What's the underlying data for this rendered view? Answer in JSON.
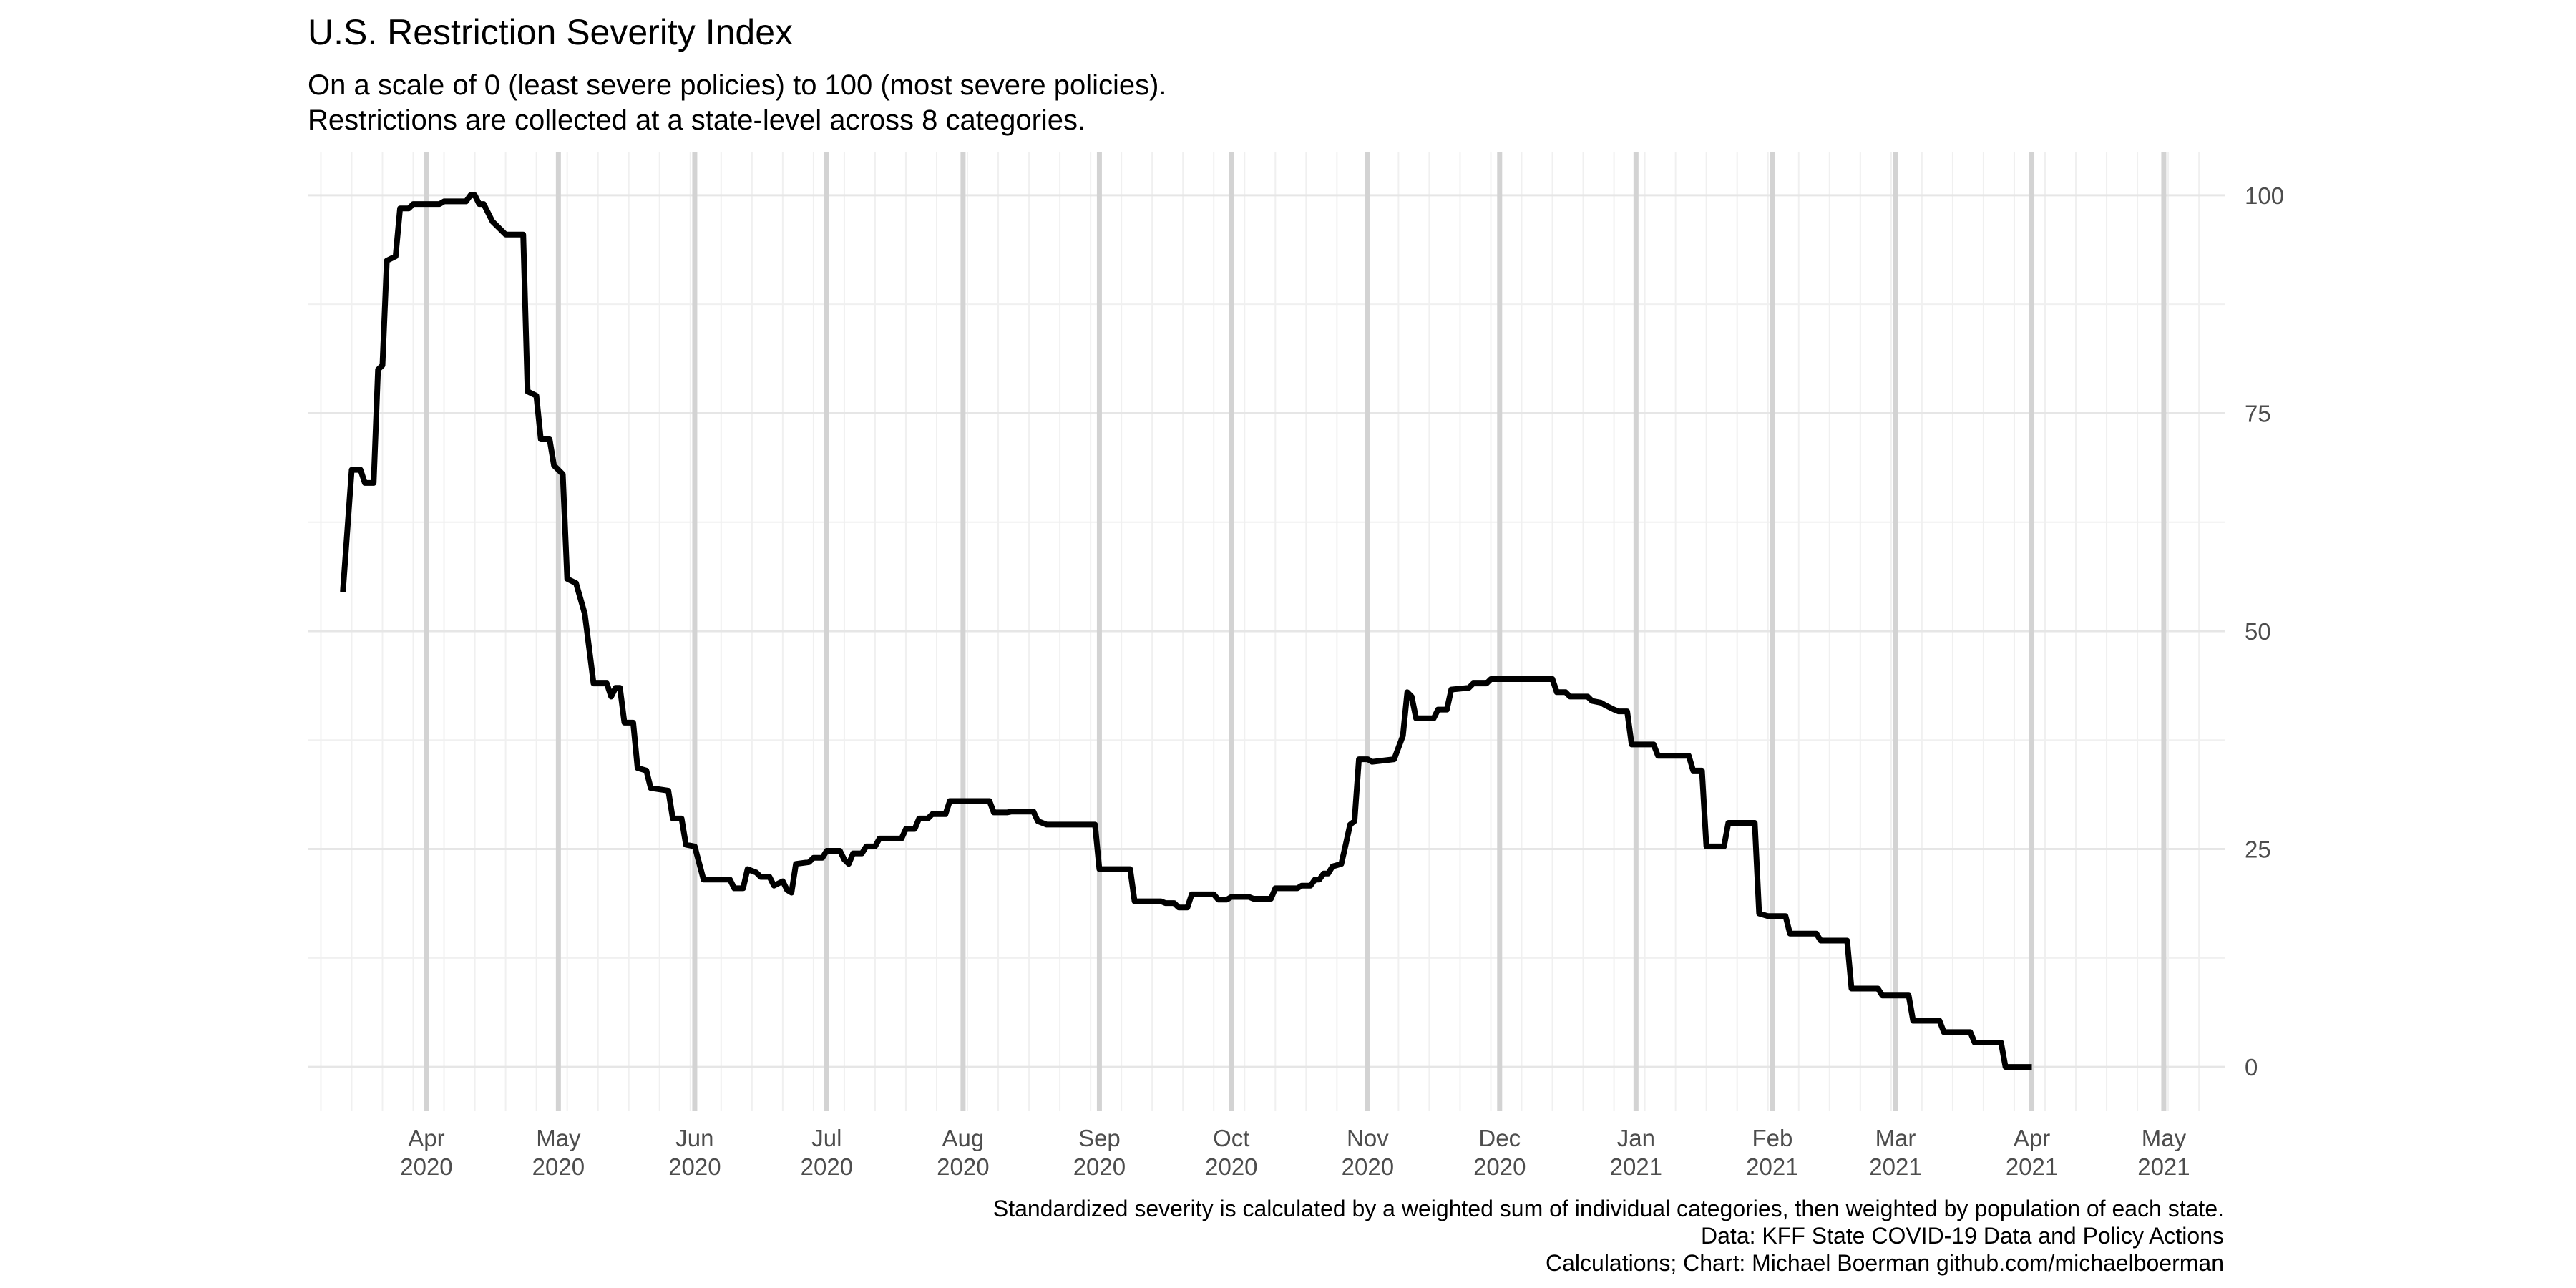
{
  "chart_data": {
    "type": "line",
    "title": "U.S. Restriction Severity Index",
    "subtitle": [
      "On a scale of 0 (least severe policies) to 100 (most severe policies).",
      "Restrictions are collected at a state-level across 8 categories."
    ],
    "caption": [
      "Standardized severity is calculated by a weighted sum of individual categories, then weighted by population of each state.",
      "Data: KFF State COVID-19 Data and Policy Actions",
      "Calculations; Chart: Michael Boerman github.com/michaelboerman"
    ],
    "xlabel": "",
    "ylabel": "",
    "xlim": [
      "2020-03-05",
      "2021-05-15"
    ],
    "ylim": [
      -5,
      105
    ],
    "y_ticks": [
      0,
      25,
      50,
      75,
      100
    ],
    "x_ticks": [
      {
        "date": "2020-04-01",
        "month": "Apr",
        "year": "2020"
      },
      {
        "date": "2020-05-01",
        "month": "May",
        "year": "2020"
      },
      {
        "date": "2020-06-01",
        "month": "Jun",
        "year": "2020"
      },
      {
        "date": "2020-07-01",
        "month": "Jul",
        "year": "2020"
      },
      {
        "date": "2020-08-01",
        "month": "Aug",
        "year": "2020"
      },
      {
        "date": "2020-09-01",
        "month": "Sep",
        "year": "2020"
      },
      {
        "date": "2020-10-01",
        "month": "Oct",
        "year": "2020"
      },
      {
        "date": "2020-11-01",
        "month": "Nov",
        "year": "2020"
      },
      {
        "date": "2020-12-01",
        "month": "Dec",
        "year": "2020"
      },
      {
        "date": "2021-01-01",
        "month": "Jan",
        "year": "2021"
      },
      {
        "date": "2021-02-01",
        "month": "Feb",
        "year": "2021"
      },
      {
        "date": "2021-03-01",
        "month": "Mar",
        "year": "2021"
      },
      {
        "date": "2021-04-01",
        "month": "Apr",
        "year": "2021"
      },
      {
        "date": "2021-05-01",
        "month": "May",
        "year": "2021"
      }
    ],
    "y_axis_position": "right",
    "grid": true,
    "legend": "none",
    "line_color": "#000000",
    "series": [
      {
        "points": [
          [
            "2020-03-13",
            54.5
          ],
          [
            "2020-03-15",
            68.5
          ],
          [
            "2020-03-17",
            68.5
          ],
          [
            "2020-03-18",
            67
          ],
          [
            "2020-03-20",
            67
          ],
          [
            "2020-03-21",
            80
          ],
          [
            "2020-03-22",
            80.5
          ],
          [
            "2020-03-23",
            92.5
          ],
          [
            "2020-03-25",
            93
          ],
          [
            "2020-03-26",
            98.5
          ],
          [
            "2020-03-28",
            98.5
          ],
          [
            "2020-03-29",
            99
          ],
          [
            "2020-04-04",
            99
          ],
          [
            "2020-04-05",
            99.3
          ],
          [
            "2020-04-10",
            99.3
          ],
          [
            "2020-04-11",
            100
          ],
          [
            "2020-04-12",
            100
          ],
          [
            "2020-04-13",
            99
          ],
          [
            "2020-04-14",
            99
          ],
          [
            "2020-04-16",
            97
          ],
          [
            "2020-04-17",
            96.5
          ],
          [
            "2020-04-19",
            95.5
          ],
          [
            "2020-04-23",
            95.5
          ],
          [
            "2020-04-24",
            77.5
          ],
          [
            "2020-04-26",
            77
          ],
          [
            "2020-04-27",
            72
          ],
          [
            "2020-04-29",
            72
          ],
          [
            "2020-04-30",
            69
          ],
          [
            "2020-05-02",
            68
          ],
          [
            "2020-05-03",
            56
          ],
          [
            "2020-05-05",
            55.5
          ],
          [
            "2020-05-07",
            52
          ],
          [
            "2020-05-08",
            48
          ],
          [
            "2020-05-09",
            44
          ],
          [
            "2020-05-12",
            44
          ],
          [
            "2020-05-13",
            42.5
          ],
          [
            "2020-05-14",
            43.5
          ],
          [
            "2020-05-15",
            43.5
          ],
          [
            "2020-05-16",
            39.5
          ],
          [
            "2020-05-18",
            39.5
          ],
          [
            "2020-05-19",
            34.3
          ],
          [
            "2020-05-21",
            34
          ],
          [
            "2020-05-22",
            32
          ],
          [
            "2020-05-26",
            31.7
          ],
          [
            "2020-05-27",
            28.5
          ],
          [
            "2020-05-29",
            28.5
          ],
          [
            "2020-05-30",
            25.5
          ],
          [
            "2020-06-01",
            25.3
          ],
          [
            "2020-06-03",
            21.5
          ],
          [
            "2020-06-09",
            21.5
          ],
          [
            "2020-06-10",
            20.5
          ],
          [
            "2020-06-12",
            20.5
          ],
          [
            "2020-06-13",
            22.7
          ],
          [
            "2020-06-15",
            22.3
          ],
          [
            "2020-06-16",
            21.8
          ],
          [
            "2020-06-18",
            21.8
          ],
          [
            "2020-06-19",
            20.8
          ],
          [
            "2020-06-21",
            21.3
          ],
          [
            "2020-06-22",
            20.3
          ],
          [
            "2020-06-23",
            20
          ],
          [
            "2020-06-24",
            23.3
          ],
          [
            "2020-06-27",
            23.5
          ],
          [
            "2020-06-28",
            24
          ],
          [
            "2020-06-30",
            24
          ],
          [
            "2020-07-01",
            24.8
          ],
          [
            "2020-07-04",
            24.8
          ],
          [
            "2020-07-05",
            23.8
          ],
          [
            "2020-07-06",
            23.3
          ],
          [
            "2020-07-07",
            24.5
          ],
          [
            "2020-07-09",
            24.5
          ],
          [
            "2020-07-10",
            25.3
          ],
          [
            "2020-07-12",
            25.3
          ],
          [
            "2020-07-13",
            26.2
          ],
          [
            "2020-07-18",
            26.2
          ],
          [
            "2020-07-19",
            27.3
          ],
          [
            "2020-07-21",
            27.3
          ],
          [
            "2020-07-22",
            28.5
          ],
          [
            "2020-07-24",
            28.5
          ],
          [
            "2020-07-25",
            29
          ],
          [
            "2020-07-28",
            29
          ],
          [
            "2020-07-29",
            30.5
          ],
          [
            "2020-08-07",
            30.5
          ],
          [
            "2020-08-08",
            29.2
          ],
          [
            "2020-08-11",
            29.2
          ],
          [
            "2020-08-12",
            29.3
          ],
          [
            "2020-08-17",
            29.3
          ],
          [
            "2020-08-18",
            28.2
          ],
          [
            "2020-08-20",
            27.8
          ],
          [
            "2020-08-21",
            27.8
          ],
          [
            "2020-08-31",
            27.8
          ],
          [
            "2020-09-01",
            22.7
          ],
          [
            "2020-09-08",
            22.7
          ],
          [
            "2020-09-09",
            19
          ],
          [
            "2020-09-15",
            19
          ],
          [
            "2020-09-16",
            18.8
          ],
          [
            "2020-09-18",
            18.8
          ],
          [
            "2020-09-19",
            18.3
          ],
          [
            "2020-09-21",
            18.3
          ],
          [
            "2020-09-22",
            19.8
          ],
          [
            "2020-09-27",
            19.8
          ],
          [
            "2020-09-28",
            19.2
          ],
          [
            "2020-09-30",
            19.2
          ],
          [
            "2020-10-01",
            19.5
          ],
          [
            "2020-10-05",
            19.5
          ],
          [
            "2020-10-06",
            19.3
          ],
          [
            "2020-10-10",
            19.3
          ],
          [
            "2020-10-11",
            20.5
          ],
          [
            "2020-10-16",
            20.5
          ],
          [
            "2020-10-17",
            20.8
          ],
          [
            "2020-10-19",
            20.8
          ],
          [
            "2020-10-20",
            21.5
          ],
          [
            "2020-10-21",
            21.5
          ],
          [
            "2020-10-22",
            22.2
          ],
          [
            "2020-10-23",
            22.2
          ],
          [
            "2020-10-24",
            23
          ],
          [
            "2020-10-26",
            23.3
          ],
          [
            "2020-10-27",
            25.5
          ],
          [
            "2020-10-28",
            27.8
          ],
          [
            "2020-10-29",
            28.2
          ],
          [
            "2020-10-30",
            35.3
          ],
          [
            "2020-11-01",
            35.3
          ],
          [
            "2020-11-02",
            35
          ],
          [
            "2020-11-07",
            35.3
          ],
          [
            "2020-11-09",
            38
          ],
          [
            "2020-11-10",
            43
          ],
          [
            "2020-11-11",
            42.5
          ],
          [
            "2020-11-12",
            40
          ],
          [
            "2020-11-16",
            40
          ],
          [
            "2020-11-17",
            41
          ],
          [
            "2020-11-19",
            41
          ],
          [
            "2020-11-20",
            43.3
          ],
          [
            "2020-11-24",
            43.5
          ],
          [
            "2020-11-25",
            44
          ],
          [
            "2020-11-28",
            44
          ],
          [
            "2020-11-29",
            44.5
          ],
          [
            "2020-12-13",
            44.5
          ],
          [
            "2020-12-14",
            43
          ],
          [
            "2020-12-16",
            43
          ],
          [
            "2020-12-17",
            42.5
          ],
          [
            "2020-12-21",
            42.5
          ],
          [
            "2020-12-22",
            42
          ],
          [
            "2020-12-24",
            41.8
          ],
          [
            "2020-12-25",
            41.5
          ],
          [
            "2020-12-27",
            41
          ],
          [
            "2020-12-28",
            40.8
          ],
          [
            "2020-12-30",
            40.8
          ],
          [
            "2020-12-31",
            37
          ],
          [
            "2021-01-05",
            37
          ],
          [
            "2021-01-06",
            35.7
          ],
          [
            "2021-01-13",
            35.7
          ],
          [
            "2021-01-14",
            34
          ],
          [
            "2021-01-16",
            34
          ],
          [
            "2021-01-17",
            25.3
          ],
          [
            "2021-01-21",
            25.3
          ],
          [
            "2021-01-22",
            28
          ],
          [
            "2021-01-28",
            28
          ],
          [
            "2021-01-29",
            17.6
          ],
          [
            "2021-01-31",
            17.3
          ],
          [
            "2021-02-01",
            17.3
          ],
          [
            "2021-02-04",
            17.3
          ],
          [
            "2021-02-05",
            15.3
          ],
          [
            "2021-02-11",
            15.3
          ],
          [
            "2021-02-12",
            14.5
          ],
          [
            "2021-02-18",
            14.5
          ],
          [
            "2021-02-19",
            9
          ],
          [
            "2021-02-25",
            9
          ],
          [
            "2021-02-26",
            8.2
          ],
          [
            "2021-03-04",
            8.2
          ],
          [
            "2021-03-05",
            5.3
          ],
          [
            "2021-03-11",
            5.3
          ],
          [
            "2021-03-12",
            4
          ],
          [
            "2021-03-18",
            4
          ],
          [
            "2021-03-19",
            2.8
          ],
          [
            "2021-03-25",
            2.8
          ],
          [
            "2021-03-26",
            0
          ],
          [
            "2021-04-01",
            0
          ]
        ]
      }
    ]
  }
}
